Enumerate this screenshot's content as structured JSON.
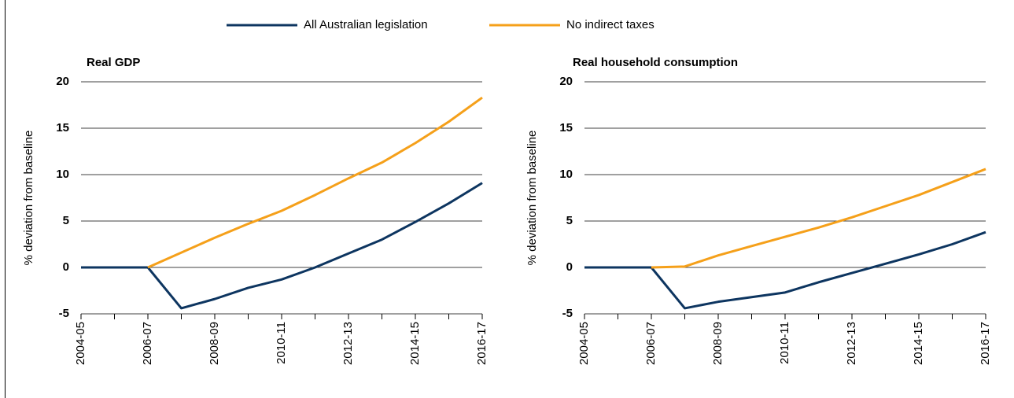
{
  "chart_data": [
    {
      "type": "line",
      "title": "Real GDP",
      "y_label": "% deviation from baseline",
      "categories": [
        "2004-05",
        null,
        "2006-07",
        null,
        "2008-09",
        null,
        "2010-11",
        null,
        "2012-13",
        null,
        "2014-15",
        null,
        "2016-17"
      ],
      "series": [
        {
          "name": "All Australian legislation",
          "color": "#0d3560",
          "values": [
            0,
            0,
            0,
            -4.4,
            -3.4,
            -2.2,
            -1.3,
            0.0,
            1.5,
            3.0,
            4.9,
            6.9,
            9.1
          ]
        },
        {
          "name": "No indirect taxes",
          "color": "#f5a01a",
          "values": [
            null,
            null,
            0,
            1.6,
            3.2,
            4.7,
            6.1,
            7.8,
            9.6,
            11.3,
            13.4,
            15.7,
            18.3
          ]
        }
      ],
      "ylim": [
        -5,
        20
      ],
      "yticks": [
        -5,
        0,
        5,
        10,
        15,
        20
      ],
      "grid": true
    },
    {
      "type": "line",
      "title": "Real household consumption",
      "y_label": "% deviation from baseline",
      "categories": [
        "2004-05",
        null,
        "2006-07",
        null,
        "2008-09",
        null,
        "2010-11",
        null,
        "2012-13",
        null,
        "2014-15",
        null,
        "2016-17"
      ],
      "series": [
        {
          "color": "#0d3560",
          "values": [
            0,
            0,
            0,
            -4.4,
            -3.7,
            -3.2,
            -2.7,
            -1.6,
            -0.6,
            0.4,
            1.4,
            2.5,
            3.8
          ]
        },
        {
          "color": "#f5a01a",
          "values": [
            null,
            null,
            0,
            0.1,
            1.3,
            2.3,
            3.3,
            4.3,
            5.4,
            6.6,
            7.8,
            9.2,
            10.6
          ]
        }
      ],
      "ylim": [
        -5,
        20
      ],
      "yticks": [
        -5,
        0,
        5,
        10,
        15,
        20
      ],
      "grid": true
    }
  ]
}
